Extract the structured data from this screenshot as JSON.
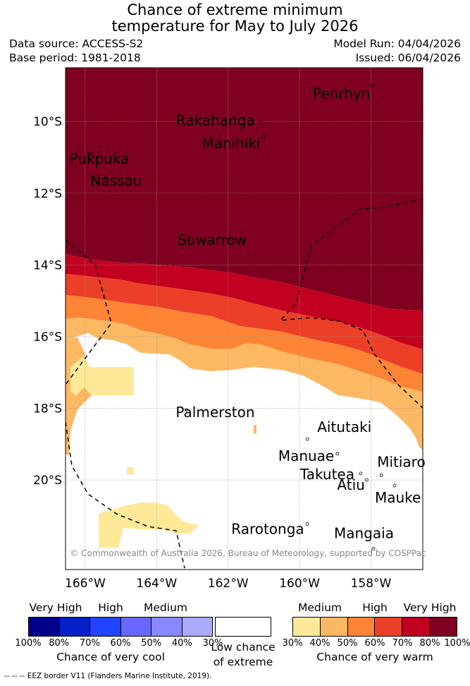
{
  "title": {
    "line1": "Chance of extreme minimum",
    "line2": "temperature for May to July 2026"
  },
  "info": {
    "data_source": "Data source: ACCESS-S2",
    "base_period": "Base period: 1981-2018",
    "model_run": "Model Run: 04/04/2026",
    "issued": "Issued: 06/04/2026"
  },
  "map": {
    "lon_labels": [
      "166°W",
      "164°W",
      "162°W",
      "160°W",
      "158°W"
    ],
    "lon_values": [
      -166,
      -164,
      -162,
      -160,
      -158
    ],
    "lat_labels": [
      "10°S",
      "12°S",
      "14°S",
      "16°S",
      "18°S",
      "20°S"
    ],
    "lat_values": [
      -10,
      -12,
      -14,
      -16,
      -18,
      -20
    ],
    "islands": [
      {
        "name": "Penrhyn",
        "lon": -157.97,
        "lat": -9.0
      },
      {
        "name": "Rakahanga",
        "lon": -161.09,
        "lat": -10.03
      },
      {
        "name": "Manihiki",
        "lon": -161.0,
        "lat": -10.43
      },
      {
        "name": "Pukpuka",
        "lon": -165.85,
        "lat": -10.9
      },
      {
        "name": "Nassau",
        "lon": -165.42,
        "lat": -11.55
      },
      {
        "name": "Suwarrow",
        "lon": -163.1,
        "lat": -13.25
      },
      {
        "name": "Palmerston",
        "lon": -163.17,
        "lat": -18.05
      },
      {
        "name": "Aitutaki",
        "lon": -159.78,
        "lat": -18.86
      },
      {
        "name": "Manuae",
        "lon": -158.94,
        "lat": -19.27
      },
      {
        "name": "Takutea",
        "lon": -158.29,
        "lat": -19.82
      },
      {
        "name": "Mitiaro",
        "lon": -157.71,
        "lat": -19.87
      },
      {
        "name": "Atiu",
        "lon": -158.12,
        "lat": -20.0
      },
      {
        "name": "Mauke",
        "lon": -157.34,
        "lat": -20.16
      },
      {
        "name": "Rarotonga",
        "lon": -159.78,
        "lat": -21.23
      },
      {
        "name": "Mangaia",
        "lon": -157.93,
        "lat": -21.92
      }
    ],
    "copyright": "© Commonwealth of Australia 2026, Bureau of Meteorology, supported by COSPPac"
  },
  "legend": {
    "cool": {
      "cat_labels": [
        "Very High",
        "High",
        "Medium"
      ],
      "colors": [
        "#00008b",
        "#0420c8",
        "#2044ff",
        "#6868ff",
        "#8888ff",
        "#aaaaff"
      ],
      "ticks": [
        "100%",
        "80%",
        "70%",
        "60%",
        "50%",
        "40%",
        "30%"
      ],
      "caption": "Chance of very cool"
    },
    "low": {
      "caption_line1": "Low chance",
      "caption_line2": "of extreme"
    },
    "warm": {
      "cat_labels": [
        "Medium",
        "High",
        "Very High"
      ],
      "colors": [
        "#fee999",
        "#fdb863",
        "#fc8434",
        "#eb3f27",
        "#c2001f",
        "#7f0020"
      ],
      "ticks": [
        "30%",
        "40%",
        "50%",
        "60%",
        "70%",
        "80%",
        "100%"
      ],
      "caption": "Chance of very warm"
    }
  },
  "footnote": "--  --  -- EEZ border V11 (Flanders Marine Institute, 2019)."
}
